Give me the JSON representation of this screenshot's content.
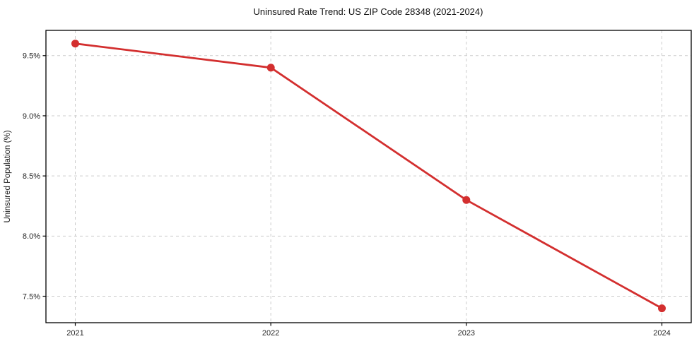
{
  "chart": {
    "title": "Uninsured Rate Trend: US ZIP Code 28348 (2021-2024)",
    "ylabel": "Uninsured Population (%)"
  },
  "chart_data": {
    "type": "line",
    "title": "Uninsured Rate Trend: US ZIP Code 28348 (2021-2024)",
    "xlabel": "",
    "ylabel": "Uninsured Population (%)",
    "x": [
      2021,
      2022,
      2023,
      2024
    ],
    "series": [
      {
        "name": "Uninsured Rate",
        "values": [
          9.6,
          9.4,
          8.3,
          7.4
        ]
      }
    ],
    "x_tick_labels": [
      "2021",
      "2022",
      "2023",
      "2024"
    ],
    "y_ticks": [
      7.5,
      8.0,
      8.5,
      9.0,
      9.5
    ],
    "y_tick_labels": [
      "7.5%",
      "8.0%",
      "8.5%",
      "9.0%",
      "9.5%"
    ],
    "xlim": [
      2020.85,
      2024.15
    ],
    "ylim": [
      7.28,
      9.71
    ],
    "grid": true,
    "grid_style": "dashed",
    "legend_position": "none",
    "line_color": "#d32f2f",
    "marker": "circle",
    "marker_radius": 5.5,
    "line_width": 2.8,
    "grid_color": "#cccccc",
    "spine_color": "#000000",
    "tick_color": "#000000"
  }
}
